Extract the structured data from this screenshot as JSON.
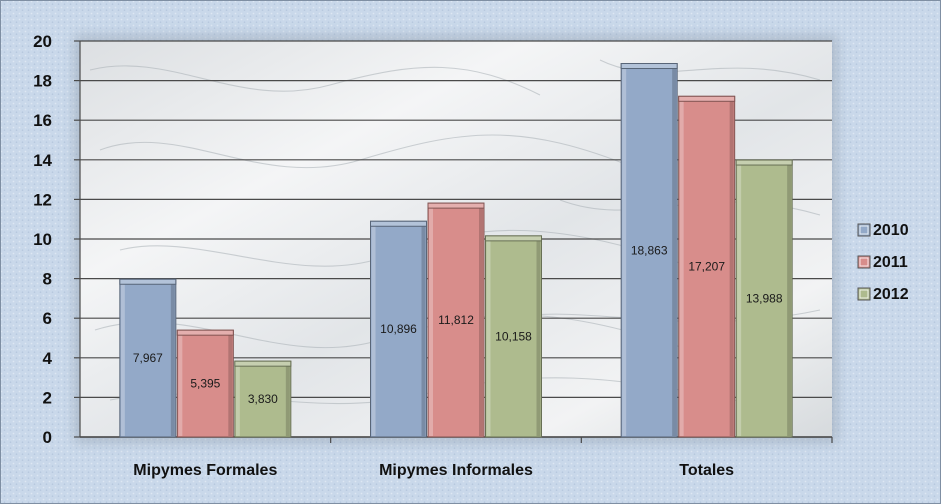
{
  "chart_data": {
    "type": "bar",
    "categories": [
      "Mipymes Formales",
      "Mipymes Informales",
      "Totales"
    ],
    "series": [
      {
        "name": "2010",
        "values": [
          7.967,
          10.896,
          18.863
        ],
        "labels": [
          "7,967",
          "10,896",
          "18,863"
        ],
        "color": "#93a9c8"
      },
      {
        "name": "2011",
        "values": [
          5.395,
          11.812,
          17.207
        ],
        "labels": [
          "5,395",
          "11,812",
          "17,207"
        ],
        "color": "#d88d8b"
      },
      {
        "name": "2012",
        "values": [
          3.83,
          10.158,
          13.988
        ],
        "labels": [
          "3,830",
          "10,158",
          "13,988"
        ],
        "color": "#aebb8e"
      }
    ],
    "ylim": [
      0,
      20
    ],
    "yticks": [
      0,
      2,
      4,
      6,
      8,
      10,
      12,
      14,
      16,
      18,
      20
    ],
    "grid": true,
    "legend": "right",
    "title": "",
    "xlabel": "",
    "ylabel": ""
  }
}
